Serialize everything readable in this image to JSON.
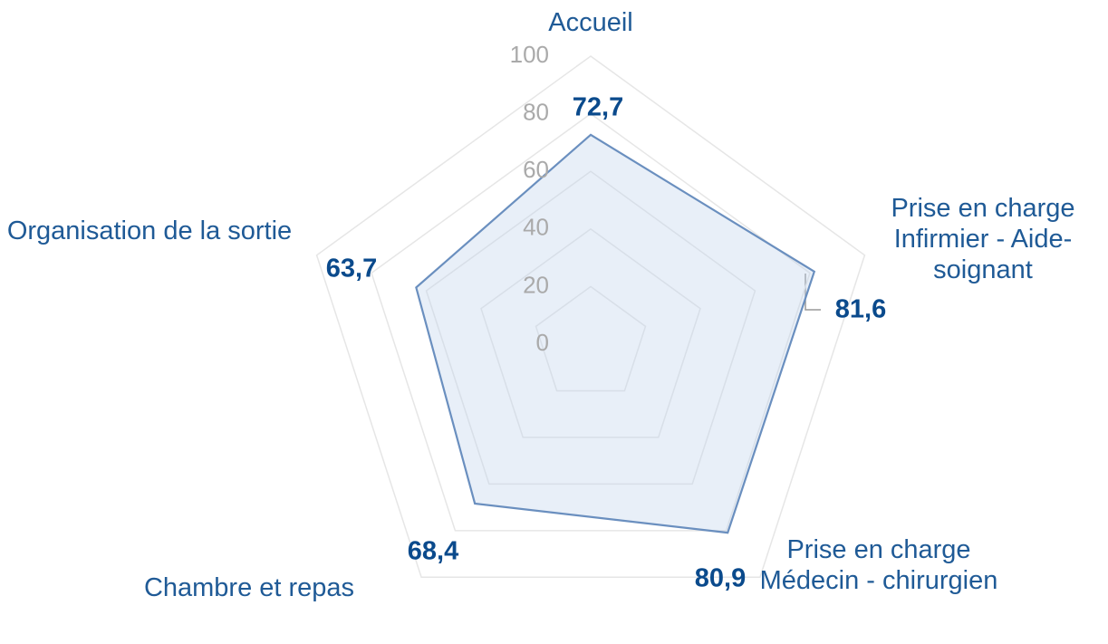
{
  "chart_data": {
    "type": "radar",
    "categories": [
      "Accueil",
      "Prise en charge Infirmier - Aide-soignant",
      "Prise en charge Médecin - chirurgien",
      "Chambre et repas",
      "Organisation de la sortie"
    ],
    "values": [
      72.7,
      81.6,
      80.9,
      68.4,
      63.7
    ],
    "value_labels": [
      "72,7",
      "81,6",
      "80,9",
      "68,4",
      "63,7"
    ],
    "rlim": [
      0,
      100
    ],
    "rticks": [
      0,
      20,
      40,
      60,
      80,
      100
    ],
    "color": "#6a8fbf",
    "grid": true
  }
}
